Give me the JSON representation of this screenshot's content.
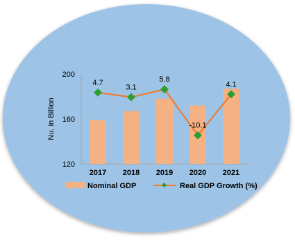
{
  "chart_data": {
    "type": "bar",
    "categories": [
      "2017",
      "2018",
      "2019",
      "2020",
      "2021"
    ],
    "ylabel": "Nu. in Billion",
    "ylim": [
      120,
      200
    ],
    "yticks": [
      "120",
      "160",
      "200"
    ],
    "grid": false,
    "legend_position": "bottom",
    "series": [
      {
        "name": "Nominal GDP",
        "kind": "bar",
        "values": [
          159,
          167,
          178,
          172,
          187
        ],
        "color": "#f4b183"
      },
      {
        "name": "Real GDP Growth (%)",
        "kind": "line",
        "values": [
          4.7,
          3.1,
          5.8,
          -10.1,
          4.1
        ],
        "labels": [
          "4.7",
          "3.1",
          "5.8",
          "-10.1",
          "4.1"
        ],
        "line_color": "#ed7d31",
        "marker_color": "#2e9e2e"
      }
    ],
    "background_color": "#9dc3e6"
  }
}
